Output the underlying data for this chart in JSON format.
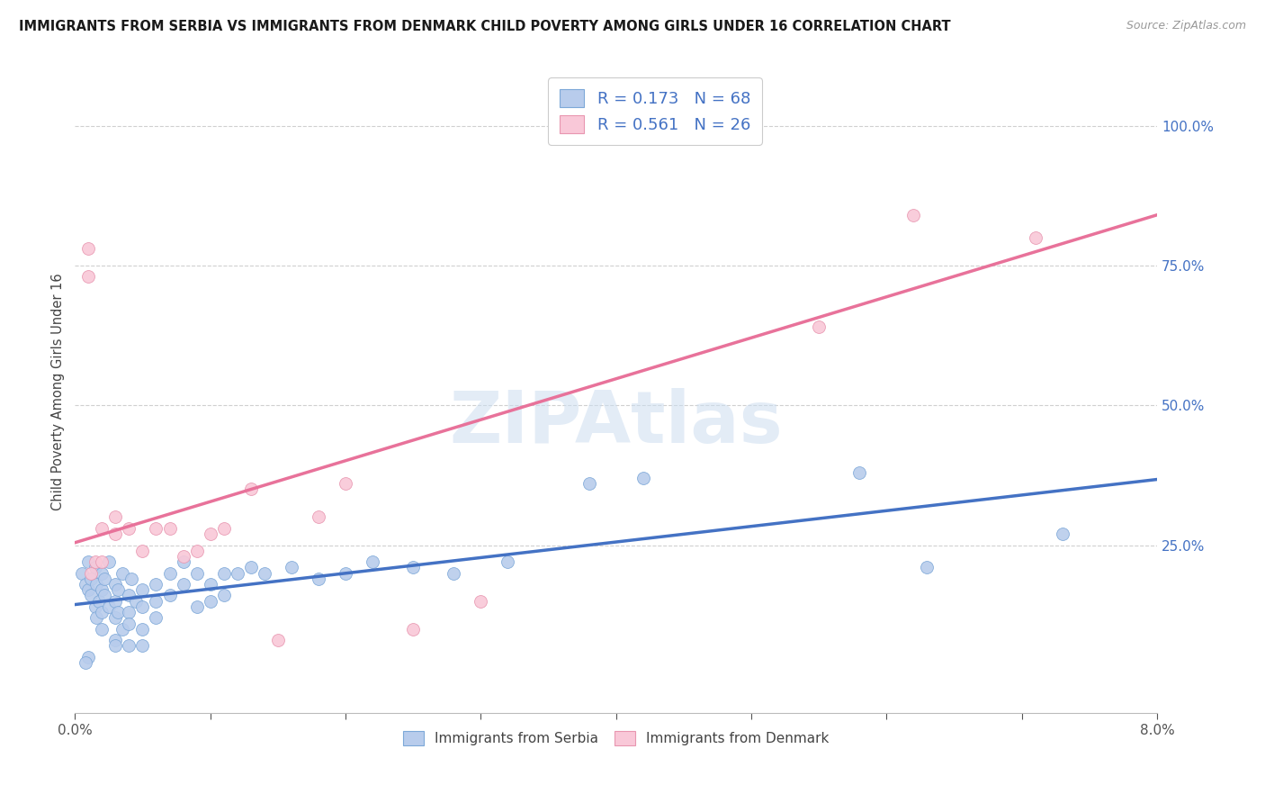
{
  "title": "IMMIGRANTS FROM SERBIA VS IMMIGRANTS FROM DENMARK CHILD POVERTY AMONG GIRLS UNDER 16 CORRELATION CHART",
  "source": "Source: ZipAtlas.com",
  "ylabel": "Child Poverty Among Girls Under 16",
  "ylabel_right_labels": [
    "100.0%",
    "75.0%",
    "50.0%",
    "25.0%"
  ],
  "ylabel_right_values": [
    1.0,
    0.75,
    0.5,
    0.25
  ],
  "watermark": "ZIPAtlas",
  "serbia_label": "Immigrants from Serbia",
  "denmark_label": "Immigrants from Denmark",
  "serbia_R": "0.173",
  "serbia_N": "68",
  "denmark_R": "0.561",
  "denmark_N": "26",
  "serbia_color": "#b8ccec",
  "serbia_edge_color": "#7da8d8",
  "serbia_line_color": "#4472c4",
  "denmark_color": "#f9c8d8",
  "denmark_edge_color": "#e896b0",
  "denmark_line_color": "#e8729a",
  "legend_color": "#4472c4",
  "xmin": 0.0,
  "xmax": 0.08,
  "ymin": -0.05,
  "ymax": 1.1,
  "grid_color": "#d0d0d0",
  "bg_color": "#ffffff",
  "serbia_x": [
    0.0005,
    0.0008,
    0.001,
    0.001,
    0.0012,
    0.0012,
    0.0015,
    0.0015,
    0.0016,
    0.0016,
    0.0018,
    0.002,
    0.002,
    0.002,
    0.002,
    0.0022,
    0.0022,
    0.0025,
    0.0025,
    0.003,
    0.003,
    0.003,
    0.003,
    0.0032,
    0.0032,
    0.0035,
    0.0035,
    0.004,
    0.004,
    0.004,
    0.004,
    0.0042,
    0.0045,
    0.005,
    0.005,
    0.005,
    0.005,
    0.006,
    0.006,
    0.006,
    0.007,
    0.007,
    0.008,
    0.008,
    0.009,
    0.009,
    0.01,
    0.01,
    0.011,
    0.011,
    0.012,
    0.013,
    0.014,
    0.016,
    0.018,
    0.02,
    0.022,
    0.025,
    0.028,
    0.032,
    0.038,
    0.042,
    0.058,
    0.063,
    0.001,
    0.0008,
    0.003,
    0.073
  ],
  "serbia_y": [
    0.2,
    0.18,
    0.22,
    0.17,
    0.19,
    0.16,
    0.14,
    0.21,
    0.18,
    0.12,
    0.15,
    0.2,
    0.17,
    0.13,
    0.1,
    0.19,
    0.16,
    0.22,
    0.14,
    0.18,
    0.15,
    0.12,
    0.08,
    0.17,
    0.13,
    0.2,
    0.1,
    0.16,
    0.13,
    0.11,
    0.07,
    0.19,
    0.15,
    0.17,
    0.14,
    0.1,
    0.07,
    0.18,
    0.15,
    0.12,
    0.2,
    0.16,
    0.22,
    0.18,
    0.2,
    0.14,
    0.18,
    0.15,
    0.2,
    0.16,
    0.2,
    0.21,
    0.2,
    0.21,
    0.19,
    0.2,
    0.22,
    0.21,
    0.2,
    0.22,
    0.36,
    0.37,
    0.38,
    0.21,
    0.05,
    0.04,
    0.07,
    0.27
  ],
  "denmark_x": [
    0.001,
    0.001,
    0.0012,
    0.0015,
    0.002,
    0.002,
    0.003,
    0.003,
    0.004,
    0.005,
    0.006,
    0.007,
    0.008,
    0.009,
    0.01,
    0.011,
    0.013,
    0.015,
    0.018,
    0.02,
    0.025,
    0.03,
    0.04,
    0.055,
    0.062,
    0.071
  ],
  "denmark_y": [
    0.78,
    0.73,
    0.2,
    0.22,
    0.28,
    0.22,
    0.3,
    0.27,
    0.28,
    0.24,
    0.28,
    0.28,
    0.23,
    0.24,
    0.27,
    0.28,
    0.35,
    0.08,
    0.3,
    0.36,
    0.1,
    0.15,
    1.0,
    0.64,
    0.84,
    0.8
  ]
}
